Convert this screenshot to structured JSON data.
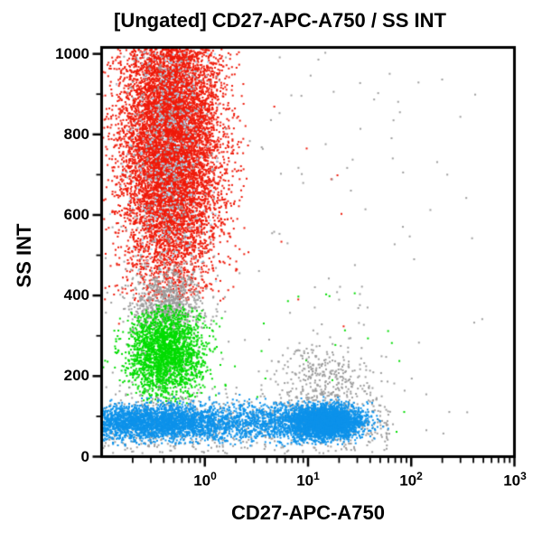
{
  "figure": {
    "background": "#ffffff",
    "border_color": "#000000"
  },
  "chart_data": {
    "type": "scatter",
    "title": "[Ungated] CD27-APC-A750 / SS INT",
    "xlabel": "CD27-APC-A750",
    "ylabel": "SS INT",
    "grid": false,
    "legend": false,
    "x_axis": {
      "scale": "log10",
      "domain_log10": [
        -1,
        3
      ],
      "major_tick_exponents": [
        0,
        1,
        2,
        3
      ],
      "minor_ticks": "2-9 each decade"
    },
    "y_axis": {
      "scale": "linear",
      "domain": [
        0,
        1016
      ],
      "major_ticks": [
        0,
        200,
        400,
        600,
        800,
        1000
      ],
      "minor_tick_step": 100
    },
    "x_tick_labels": [
      {
        "base": "10",
        "exp": "0"
      },
      {
        "base": "10",
        "exp": "1"
      },
      {
        "base": "10",
        "exp": "2"
      },
      {
        "base": "10",
        "exp": "3"
      }
    ],
    "y_tick_labels": [
      "0",
      "200",
      "400",
      "600",
      "800",
      "1000"
    ],
    "colors": {
      "red": "#ee1a0a",
      "green": "#00dc00",
      "blue": "#0d92ea",
      "gray": "#9d9d9d",
      "light_blue_speckle": "#a5d9f3",
      "axis": "#000000"
    },
    "point_size": 2,
    "seed": 1234,
    "populations": [
      {
        "name": "granulocytes-red",
        "color": "#ee1a0a",
        "count": 9000,
        "x": {
          "dist": "gauss",
          "mean": -0.33,
          "sd": 0.24,
          "min": -1.0,
          "max": 0.45
        },
        "y": {
          "dist": "gauss",
          "mean": 790,
          "sd": 195,
          "min": 385,
          "max": 1012
        }
      },
      {
        "name": "light-blue-speckle",
        "color": "#a5d9f3",
        "count": 450,
        "x": {
          "dist": "gauss",
          "mean": -0.33,
          "sd": 0.2,
          "min": -1.0,
          "max": 0.25
        },
        "y": {
          "dist": "gauss",
          "mean": 780,
          "sd": 185,
          "min": 430,
          "max": 1005
        }
      },
      {
        "name": "red-outliers",
        "color": "#ee1a0a",
        "count": 14,
        "x": {
          "dist": "uniform",
          "min": -0.9,
          "max": 1.6
        },
        "y": {
          "dist": "uniform",
          "min": 320,
          "max": 1000
        }
      },
      {
        "name": "gray-monocyte-band",
        "color": "#9d9d9d",
        "count": 650,
        "x": {
          "dist": "gauss",
          "mean": -0.36,
          "sd": 0.17,
          "min": -1.0,
          "max": 0.2
        },
        "y": {
          "dist": "gauss",
          "mean": 382,
          "sd": 40,
          "min": 295,
          "max": 485
        }
      },
      {
        "name": "gray-column",
        "color": "#9d9d9d",
        "count": 430,
        "x": {
          "dist": "gauss",
          "mean": -0.37,
          "sd": 0.2,
          "min": -1.0,
          "max": 0.3
        },
        "y": {
          "dist": "uniform",
          "min": 20,
          "max": 1005
        }
      },
      {
        "name": "monocytes-green",
        "color": "#00dc00",
        "count": 2300,
        "x": {
          "dist": "gauss",
          "mean": -0.38,
          "sd": 0.18,
          "min": -1.0,
          "max": 0.35
        },
        "y": {
          "dist": "gauss",
          "mean": 258,
          "sd": 55,
          "min": 132,
          "max": 378
        }
      },
      {
        "name": "green-sparse",
        "color": "#00dc00",
        "count": 20,
        "x": {
          "dist": "uniform",
          "min": 0.2,
          "max": 2.1
        },
        "y": {
          "dist": "uniform",
          "min": 60,
          "max": 420
        }
      },
      {
        "name": "gray-debris-bottom",
        "color": "#9d9d9d",
        "count": 700,
        "x": {
          "dist": "uniform",
          "min": -1.0,
          "max": 1.8
        },
        "y": {
          "dist": "gauss",
          "mean": 75,
          "sd": 45,
          "min": 8,
          "max": 215
        }
      },
      {
        "name": "gray-cloud-right",
        "color": "#9d9d9d",
        "count": 380,
        "x": {
          "dist": "gauss",
          "mean": 1.15,
          "sd": 0.22,
          "min": 0.6,
          "max": 1.9
        },
        "y": {
          "dist": "gauss",
          "mean": 165,
          "sd": 60,
          "min": 105,
          "max": 400
        }
      },
      {
        "name": "gray-sparse-everywhere",
        "color": "#9d9d9d",
        "count": 130,
        "x": {
          "dist": "uniform",
          "min": -1.0,
          "max": 2.7
        },
        "y": {
          "dist": "uniform",
          "min": 20,
          "max": 1005
        }
      },
      {
        "name": "lymphocytes-blue-cd27neg",
        "color": "#0d92ea",
        "count": 2400,
        "x": {
          "dist": "gauss",
          "mean": -0.5,
          "sd": 0.42,
          "min": -0.99,
          "max": 0.1
        },
        "y": {
          "dist": "gauss",
          "mean": 85,
          "sd": 22,
          "min": 26,
          "max": 158
        }
      },
      {
        "name": "lymphocytes-blue-bridge",
        "color": "#0d92ea",
        "count": 1100,
        "x": {
          "dist": "uniform",
          "min": 0.02,
          "max": 1.0
        },
        "y": {
          "dist": "gauss",
          "mean": 85,
          "sd": 24,
          "min": 26,
          "max": 158
        }
      },
      {
        "name": "lymphocytes-blue-cd27pos",
        "color": "#0d92ea",
        "count": 3400,
        "x": {
          "dist": "gauss",
          "mean": 1.18,
          "sd": 0.17,
          "min": 0.7,
          "max": 1.8
        },
        "y": {
          "dist": "gauss",
          "mean": 86,
          "sd": 20,
          "min": 28,
          "max": 158
        }
      }
    ]
  }
}
